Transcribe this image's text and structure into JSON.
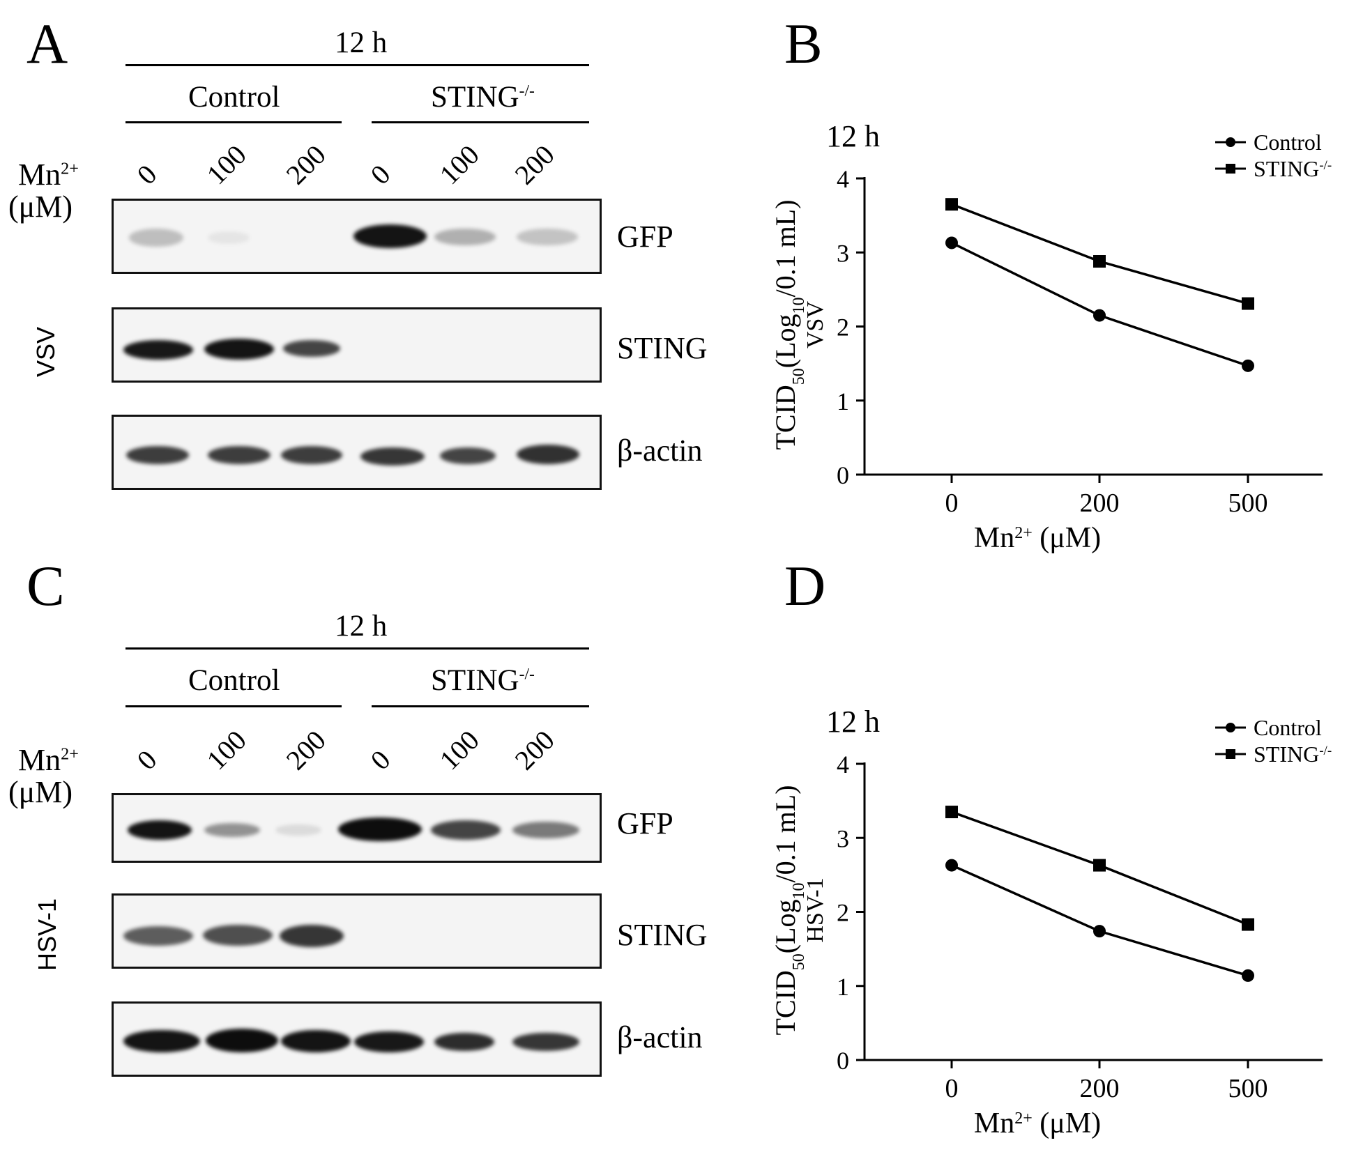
{
  "figure": {
    "panels": {
      "A": {
        "letter": "A",
        "time": "12 h",
        "group_control": "Control",
        "group_sting": "STING",
        "group_sting_sup": "-/-",
        "mn_label_1": "Mn",
        "mn_label_sup": "2+",
        "mn_label_2": "(μM)",
        "lanes": [
          "0",
          "100",
          "200",
          "0",
          "100",
          "200"
        ],
        "virus": "VSV",
        "proteins": [
          "GFP",
          "STING",
          "β-actin"
        ]
      },
      "C": {
        "letter": "C",
        "time": "12 h",
        "group_control": "Control",
        "group_sting": "STING",
        "group_sting_sup": "-/-",
        "mn_label_1": "Mn",
        "mn_label_sup": "2+",
        "mn_label_2": "(μM)",
        "lanes": [
          "0",
          "100",
          "200",
          "0",
          "100",
          "200"
        ],
        "virus": "HSV-1",
        "proteins": [
          "GFP",
          "STING",
          "β-actin"
        ]
      },
      "B": {
        "letter": "B"
      },
      "D": {
        "letter": "D"
      }
    }
  },
  "chart_data": [
    {
      "panel": "B",
      "type": "line",
      "title": "12 h",
      "ylabel_main": "TCID",
      "ylabel_sub": "50",
      "ylabel_mid": "(Log",
      "ylabel_sub2": "10",
      "ylabel_end": "/0.1 mL)",
      "ylabel_2": "VSV",
      "xlabel_main": "Mn",
      "xlabel_sup": "2+",
      "xlabel_end": "  (μM)",
      "categories": [
        "0",
        "200",
        "500"
      ],
      "yticks": [
        "0",
        "1",
        "2",
        "3",
        "4"
      ],
      "ylim": [
        0,
        4
      ],
      "series": [
        {
          "name": "Control",
          "marker": "circle",
          "values": [
            3.13,
            2.15,
            1.47
          ]
        },
        {
          "name": "STING",
          "name_sup": "-/-",
          "marker": "square",
          "values": [
            3.65,
            2.88,
            2.31
          ]
        }
      ]
    },
    {
      "panel": "D",
      "type": "line",
      "title": "12 h",
      "ylabel_main": "TCID",
      "ylabel_sub": "50",
      "ylabel_mid": "(Log",
      "ylabel_sub2": "10",
      "ylabel_end": "/0.1 mL)",
      "ylabel_2": "HSV-1",
      "xlabel_main": "Mn",
      "xlabel_sup": "2+",
      "xlabel_end": "  (μM)",
      "categories": [
        "0",
        "200",
        "500"
      ],
      "yticks": [
        "0",
        "1",
        "2",
        "3",
        "4"
      ],
      "ylim": [
        0,
        4
      ],
      "series": [
        {
          "name": "Control",
          "marker": "circle",
          "values": [
            2.63,
            1.74,
            1.14
          ]
        },
        {
          "name": "STING",
          "name_sup": "-/-",
          "marker": "square",
          "values": [
            3.35,
            2.63,
            1.83
          ]
        }
      ]
    }
  ]
}
